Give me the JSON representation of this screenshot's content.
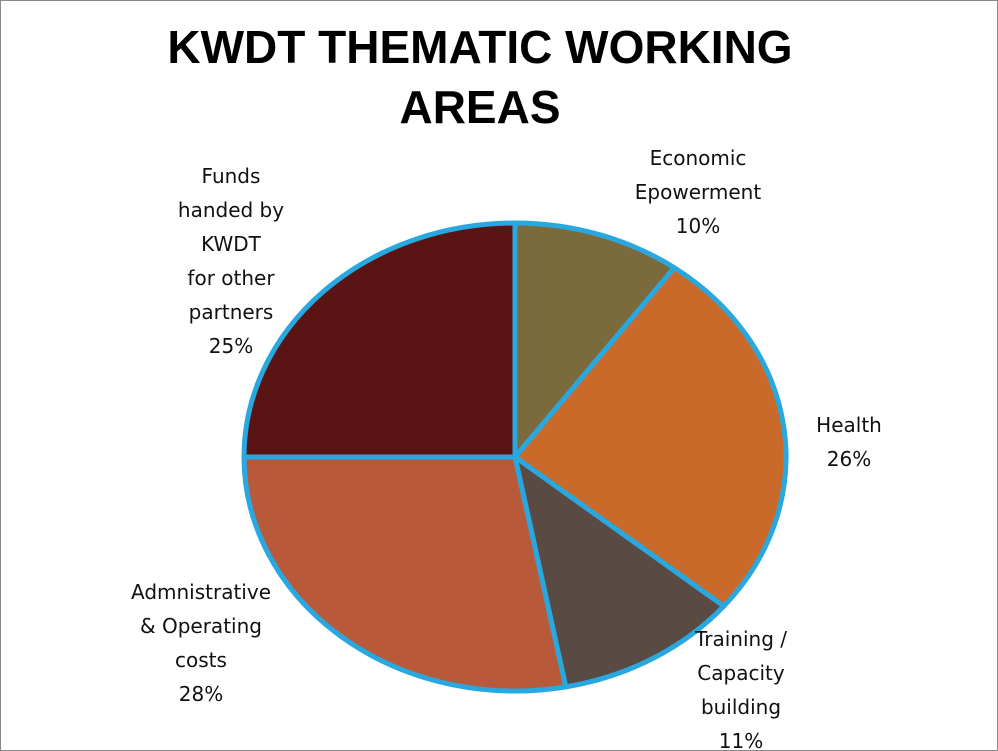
{
  "chart_data": {
    "type": "pie",
    "title": "KWDT THEMATIC WORKING\nAREAS",
    "categories": [
      "Economic\nEpowerment",
      "Health",
      "Training /\nCapacity\nbuilding",
      "Admnistrative\n& Operating\ncosts",
      "Funds\nhanded by\nKWDT\nfor other\npartners"
    ],
    "values": [
      10,
      26,
      11,
      28,
      25
    ],
    "value_labels": [
      "10%",
      "26%",
      "11%",
      "28%",
      "25%"
    ],
    "colors": [
      "#7a6a3c",
      "#c96a2a",
      "#5a4a44",
      "#b85a3a",
      "#5a1414"
    ],
    "edge_color": "#29a8e0"
  }
}
